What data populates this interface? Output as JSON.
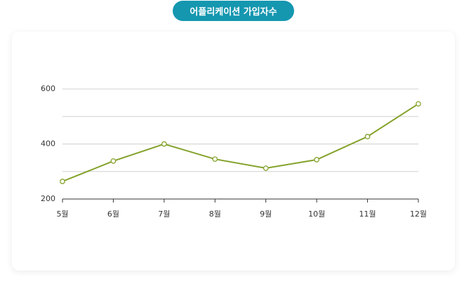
{
  "chart_data": {
    "type": "line",
    "title": "어플리케이션 가입자수",
    "categories": [
      "5월",
      "6월",
      "7월",
      "8월",
      "9월",
      "10월",
      "11월",
      "12월"
    ],
    "series": [
      {
        "color": "#84a22a",
        "values": [
          264,
          338,
          400,
          345,
          312,
          343,
          427,
          546
        ]
      }
    ],
    "ylim": [
      200,
      600
    ],
    "yticks": [
      200,
      400,
      600
    ],
    "minor_yticks": [
      300,
      500
    ],
    "grid": true
  }
}
